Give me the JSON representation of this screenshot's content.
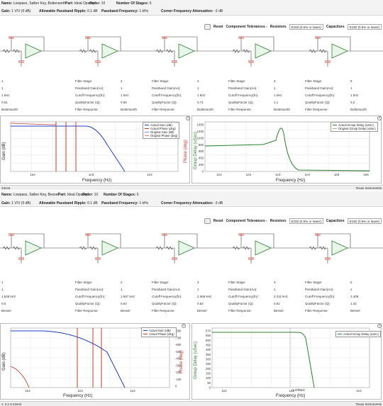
{
  "design1": {
    "name_label": "Name:",
    "name": "Lowpass, Sallen Key, Butterworth",
    "part_label": "Part:",
    "part": "Ideal Opamp",
    "order_label": "Order:",
    "order": "10",
    "stages_label": "Number Of Stages:",
    "stages": "5",
    "gain_label": "Gain:",
    "gain": "1 V/V (0 dB)",
    "ripple_label": "Allowable Passband Ripple:",
    "ripple": "0.1 dB",
    "passband_label": "Passband Frequency:",
    "passband": "1 kHz",
    "atten_label": "Corner Frequency Attenuation:",
    "atten": "-3 dB",
    "toolbar": {
      "reset": "Reset",
      "tol_label": "Component Tolerances -",
      "res_label": "Resistors",
      "res_value": "E192 (0.5% or lower)",
      "cap_label": "Capacitors",
      "cap_value": "E192 (0.5% or lower)"
    },
    "stages_table": [
      {
        "col1": "",
        "col2": "1",
        "col3": "1 kHz",
        "col4": "0.51",
        "col5": "Butterworth"
      },
      {
        "col1": "Filter Stage:",
        "col2": "2",
        "col3": "1 kHz",
        "col4": "0.56",
        "col5": "Butterworth"
      },
      {
        "col1": "Filter Stage:",
        "col2": "3",
        "col3": "1 kHz",
        "col4": "0.71",
        "col5": "Butterworth"
      },
      {
        "col1": "Filter Stage:",
        "col2": "4",
        "col3": "1 kHz",
        "col4": "1.1",
        "col5": "Butterworth"
      },
      {
        "col1": "Filter Stage:",
        "col2": "5",
        "col3": "1 kHz",
        "col4": "3.2",
        "col5": "Butterworth"
      }
    ],
    "row_labels": [
      "Filter Stage:",
      "Passband Gain(Ao):",
      "Cutoff Frequency(fn):",
      "QualityFactor (Q):",
      "Filter Response:"
    ],
    "gain_plot": {
      "ylabel": "Gain (dB)",
      "y2label": "Phase (deg)",
      "xlabel": "Frequency (Hz)",
      "xticks": [
        "1e2",
        "1e3",
        "1e4"
      ],
      "legend": [
        "Actual Gain (dB)",
        "Actual Phase (deg)",
        "Original Gain (dB)",
        "Original Phase (deg)"
      ]
    },
    "delay_plot": {
      "ylabel": "Group Delay (uSec)",
      "xlabel": "Frequency (Hz)",
      "yticks": [
        "0",
        "200",
        "400",
        "600",
        "800",
        "1000",
        "1200",
        "1400"
      ],
      "xticks": [
        "1e1",
        "1e2",
        "1e3",
        "1e4",
        "1e5",
        "1e6"
      ],
      "legend": [
        "Actual Group Delay (uSec)",
        "Original Group Delay (uSec)"
      ]
    },
    "status": "23444",
    "brand": "Texas Instruments"
  },
  "design2": {
    "name_label": "Name:",
    "name": "Lowpass, Sallen Key, Bessel",
    "part_label": "Part:",
    "part": "Ideal Opamp",
    "order_label": "Order:",
    "order": "10",
    "stages_label": "Number Of Stages:",
    "stages": "5",
    "gain_label": "Gain:",
    "gain": "1 V/V (0 dB)",
    "ripple_label": "Allowable Passband Ripple:",
    "ripple": "0.1 dB",
    "passband_label": "Passband Frequency:",
    "passband": "1 kHz",
    "atten_label": "Corner Frequency Attenuation:",
    "atten": "-3 dB",
    "toolbar": {
      "reset": "Reset",
      "tol_label": "Component Tolerances -",
      "res_label": "Resistors",
      "res_value": "E192 (0.5% or lower)",
      "cap_label": "Capacitors",
      "cap_value": "E192 (0.5% or lower)"
    },
    "stages_table": [
      {
        "col1": "",
        "col2": "1",
        "col3": "1.849 kHz",
        "col4": "0.5",
        "col5": "Bessel"
      },
      {
        "col1": "Filter Stage:",
        "col2": "2",
        "col3": "1.957 kHz",
        "col4": "0.54",
        "col5": "Bessel"
      },
      {
        "col1": "Filter Stage:",
        "col2": "3",
        "col3": "2.068 kHz",
        "col4": "0.62",
        "col5": "Bessel"
      },
      {
        "col1": "Filter Stage:",
        "col2": "4",
        "col3": "2.211 kHz",
        "col4": "0.81",
        "col5": "Bessel"
      },
      {
        "col1": "Filter Stage:",
        "col2": "5",
        "col3": "2.408",
        "col4": "1.42",
        "col5": "Bessel"
      }
    ],
    "row_labels": [
      "Filter Stage:",
      "Passband Gain(Ao):",
      "Cutoff Frequency(fn):",
      "QualityFactor (Q):",
      "Filter Response:"
    ],
    "gain_plot": {
      "ylabel": "Gain (dB)",
      "y2label": "Phase (deg)",
      "xlabel": "Frequency (Hz)",
      "xticks": [
        "1e2",
        "1e3",
        "1e4"
      ],
      "yticks": [
        "-40",
        "-20",
        "0",
        "20"
      ],
      "y2ticks": [
        "0",
        "-100",
        "-200",
        "-300",
        "-400",
        "-500",
        "-600",
        "-700",
        "-800"
      ],
      "legend": [
        "Actual Gain (dB)",
        "Actual Phase (deg)"
      ]
    },
    "delay_plot": {
      "ylabel": "Group Delay (uSec)",
      "xlabel": "Frequency (Hz)",
      "yticks": [
        "0",
        "50",
        "100",
        "150",
        "200",
        "250",
        "300",
        "350",
        "400",
        "450",
        "500",
        "550",
        "570"
      ],
      "xticks": [
        "1e2",
        "1e3",
        "1e4"
      ],
      "legend": [
        "Actual Group Delay (uSec)"
      ],
      "marker": "1.3765e3"
    },
    "status": "v: 3.1.0.23444",
    "brand": "Texas Instruments"
  },
  "colors": {
    "capacitor": "#c0392b",
    "opamp": "#2e7d32",
    "wire": "#444444",
    "blue": "#1f3fbf",
    "red": "#c0392b",
    "green": "#2e7d32",
    "grid": "#e6e6e6"
  }
}
